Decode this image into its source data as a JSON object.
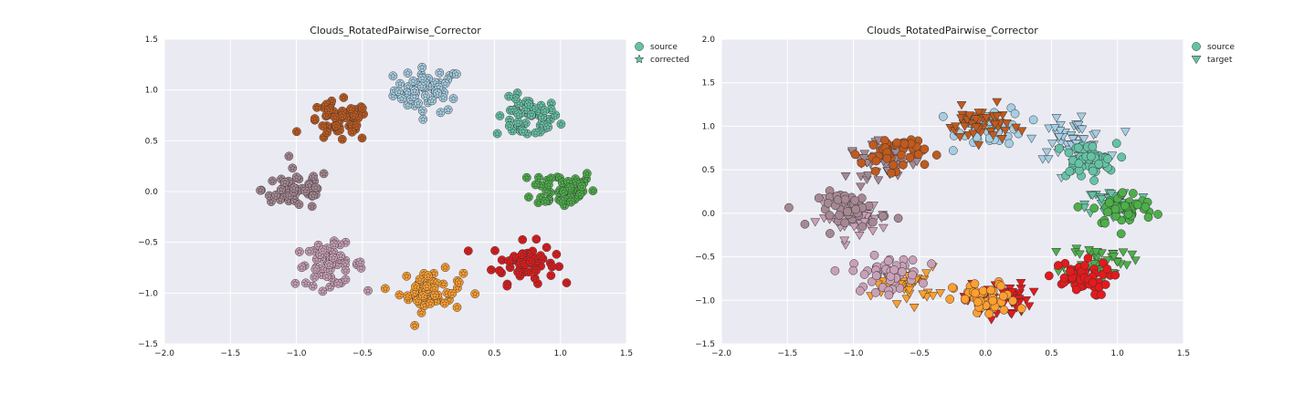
{
  "chart_data": [
    {
      "type": "scatter",
      "title": "Clouds_RotatedPairwise_Corrector",
      "xlabel": "",
      "ylabel": "",
      "xlim": [
        -2.0,
        1.5
      ],
      "ylim": [
        -1.5,
        1.5
      ],
      "xticks": [
        "−2.0",
        "−1.5",
        "−1.0",
        "−0.5",
        "0.0",
        "0.5",
        "1.0",
        "1.5"
      ],
      "yticks": [
        "−1.5",
        "−1.0",
        "−0.5",
        "0.0",
        "0.5",
        "1.0",
        "1.5"
      ],
      "grid": true,
      "legend_position": "outside-top-right",
      "legend": [
        {
          "label": "source",
          "marker": "circle"
        },
        {
          "label": "corrected",
          "marker": "star"
        }
      ],
      "series": [
        {
          "color": "#a6cee3",
          "center": [
            0.0,
            1.0
          ],
          "spread": [
            0.13,
            0.11
          ]
        },
        {
          "color": "#66c2a5",
          "center": [
            0.75,
            0.72
          ],
          "spread": [
            0.12,
            0.1
          ]
        },
        {
          "color": "#4daf4a",
          "center": [
            1.02,
            0.03
          ],
          "spread": [
            0.12,
            0.1
          ]
        },
        {
          "color": "#e41a1c",
          "center": [
            0.72,
            -0.7
          ],
          "spread": [
            0.12,
            0.1
          ]
        },
        {
          "color": "#ff9f2f",
          "center": [
            0.02,
            -0.98
          ],
          "spread": [
            0.12,
            0.1
          ]
        },
        {
          "color": "#c9a0b7",
          "center": [
            -0.75,
            -0.72
          ],
          "spread": [
            0.13,
            0.1
          ]
        },
        {
          "color": "#a68893",
          "center": [
            -1.0,
            0.02
          ],
          "spread": [
            0.13,
            0.1
          ]
        },
        {
          "color": "#c05a1e",
          "center": [
            -0.68,
            0.68
          ],
          "spread": [
            0.12,
            0.1
          ]
        }
      ]
    },
    {
      "type": "scatter",
      "title": "Clouds_RotatedPairwise_Corrector",
      "xlabel": "",
      "ylabel": "",
      "xlim": [
        -2.0,
        1.5
      ],
      "ylim": [
        -1.5,
        2.0
      ],
      "xticks": [
        "−2.0",
        "−1.5",
        "−1.0",
        "−0.5",
        "0.0",
        "0.5",
        "1.0",
        "1.5"
      ],
      "yticks": [
        "−1.5",
        "−1.0",
        "−0.5",
        "0.0",
        "0.5",
        "1.0",
        "1.5",
        "2.0"
      ],
      "grid": true,
      "legend_position": "outside-top-right",
      "legend": [
        {
          "label": "source",
          "marker": "circle"
        },
        {
          "label": "target",
          "marker": "triangle-down"
        }
      ],
      "series": [
        {
          "color": "#a6cee3",
          "source_center": [
            0.05,
            1.0
          ],
          "target_center": [
            0.65,
            0.85
          ],
          "spread": [
            0.13,
            0.11
          ]
        },
        {
          "color": "#66c2a5",
          "source_center": [
            0.75,
            0.6
          ],
          "target_center": [
            1.0,
            0.1
          ],
          "spread": [
            0.12,
            0.1
          ]
        },
        {
          "color": "#4daf4a",
          "source_center": [
            1.05,
            0.05
          ],
          "target_center": [
            0.85,
            -0.55
          ],
          "spread": [
            0.12,
            0.1
          ]
        },
        {
          "color": "#e41a1c",
          "source_center": [
            0.7,
            -0.75
          ],
          "target_center": [
            0.1,
            -1.0
          ],
          "spread": [
            0.12,
            0.1
          ]
        },
        {
          "color": "#ff9f2f",
          "source_center": [
            0.0,
            -1.0
          ],
          "target_center": [
            -0.6,
            -0.82
          ],
          "spread": [
            0.12,
            0.1
          ]
        },
        {
          "color": "#c9a0b7",
          "source_center": [
            -0.75,
            -0.7
          ],
          "target_center": [
            -1.0,
            -0.05
          ],
          "spread": [
            0.13,
            0.1
          ]
        },
        {
          "color": "#a68893",
          "source_center": [
            -1.0,
            0.05
          ],
          "target_center": [
            -0.78,
            0.6
          ],
          "spread": [
            0.13,
            0.1
          ]
        },
        {
          "color": "#c05a1e",
          "source_center": [
            -0.7,
            0.7
          ],
          "target_center": [
            -0.05,
            1.02
          ],
          "spread": [
            0.12,
            0.1
          ]
        }
      ]
    }
  ]
}
